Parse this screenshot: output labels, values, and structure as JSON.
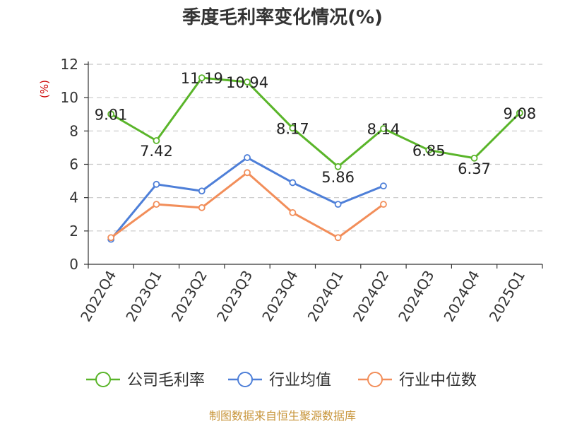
{
  "chart_data": {
    "type": "line",
    "title": "季度毛利率变化情况(%)",
    "ylabel": "(%)",
    "xlabel": "",
    "categories": [
      "2022Q4",
      "2023Q1",
      "2023Q2",
      "2023Q3",
      "2023Q4",
      "2024Q1",
      "2024Q2",
      "2024Q3",
      "2024Q4",
      "2025Q1"
    ],
    "ylim": [
      0,
      12
    ],
    "yticks": [
      "0",
      "2",
      "4",
      "6",
      "8",
      "10",
      "12"
    ],
    "grid": true,
    "legend_position": "bottom",
    "series": [
      {
        "name": "公司毛利率",
        "color": "#5ab52a",
        "values": [
          9.01,
          7.42,
          11.19,
          10.94,
          8.17,
          5.86,
          8.14,
          6.85,
          6.37,
          9.08
        ],
        "labels": [
          "9.01",
          "7.42",
          "11.19",
          "10.94",
          "8.17",
          "5.86",
          "8.14",
          "6.85",
          "6.37",
          "9.08"
        ]
      },
      {
        "name": "行业均值",
        "color": "#4e7fd8",
        "values": [
          1.5,
          4.8,
          4.4,
          6.4,
          4.9,
          3.6,
          4.7,
          null,
          null,
          null
        ]
      },
      {
        "name": "行业中位数",
        "color": "#f28e5a",
        "values": [
          1.6,
          3.6,
          3.4,
          5.5,
          3.1,
          1.6,
          3.6,
          null,
          null,
          null
        ]
      }
    ]
  },
  "source_text": "制图数据来自恒生聚源数据库"
}
